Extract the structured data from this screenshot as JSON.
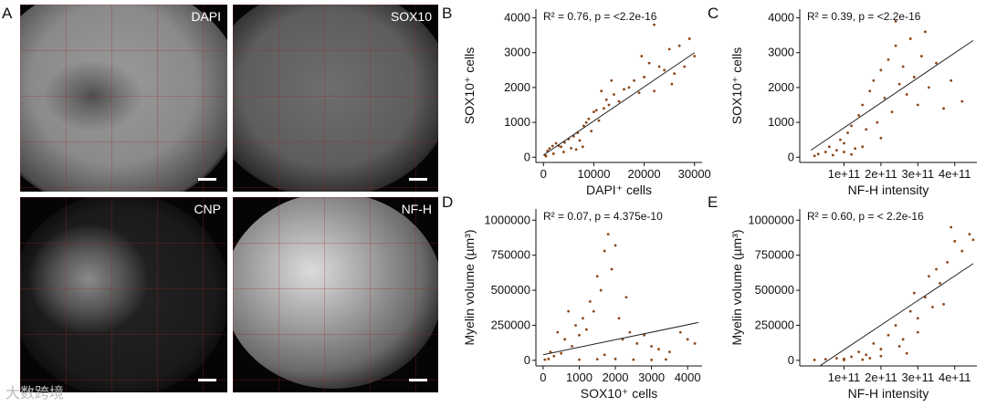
{
  "figure": {
    "panel_letters": [
      "A",
      "B",
      "C",
      "D",
      "E"
    ],
    "micrographs": [
      {
        "label": "DAPI"
      },
      {
        "label": "SOX10"
      },
      {
        "label": "CNP"
      },
      {
        "label": "NF-H"
      }
    ],
    "watermark": "大数跨境"
  },
  "colors": {
    "point": "#8b4513",
    "line": "#222222",
    "axis": "#111111"
  },
  "chart_data": [
    {
      "id": "B",
      "type": "scatter",
      "annotation": "R² = 0.76, p =  <2.2e-16",
      "xlabel": "DAPI⁺ cells",
      "ylabel": "SOX10⁺ cells",
      "xlim": [
        -1500,
        31500
      ],
      "ylim": [
        -150,
        4250
      ],
      "xticks": [
        {
          "v": 0,
          "t": "0"
        },
        {
          "v": 10000,
          "t": "10000"
        },
        {
          "v": 20000,
          "t": "20000"
        },
        {
          "v": 30000,
          "t": "30000"
        }
      ],
      "yticks": [
        {
          "v": 0,
          "t": "0"
        },
        {
          "v": 1000,
          "t": "1000"
        },
        {
          "v": 2000,
          "t": "2000"
        },
        {
          "v": 3000,
          "t": "3000"
        },
        {
          "v": 4000,
          "t": "4000"
        }
      ],
      "fit": [
        [
          0,
          60
        ],
        [
          30000,
          3000
        ]
      ],
      "points": [
        [
          300,
          60
        ],
        [
          800,
          180
        ],
        [
          1200,
          250
        ],
        [
          1800,
          320
        ],
        [
          2500,
          400
        ],
        [
          3000,
          330
        ],
        [
          3500,
          300
        ],
        [
          4200,
          420
        ],
        [
          5000,
          520
        ],
        [
          5500,
          260
        ],
        [
          6000,
          600
        ],
        [
          6800,
          700
        ],
        [
          7200,
          480
        ],
        [
          8000,
          900
        ],
        [
          8500,
          1000
        ],
        [
          9000,
          1100
        ],
        [
          9500,
          750
        ],
        [
          10000,
          1300
        ],
        [
          10500,
          1350
        ],
        [
          11000,
          1050
        ],
        [
          12000,
          1400
        ],
        [
          12500,
          1650
        ],
        [
          13000,
          1500
        ],
        [
          14000,
          1800
        ],
        [
          15000,
          1600
        ],
        [
          16000,
          1950
        ],
        [
          17000,
          2000
        ],
        [
          18000,
          2200
        ],
        [
          19000,
          1850
        ],
        [
          20000,
          2300
        ],
        [
          21000,
          2700
        ],
        [
          22000,
          1900
        ],
        [
          23000,
          2600
        ],
        [
          24000,
          2500
        ],
        [
          25000,
          3100
        ],
        [
          26000,
          2400
        ],
        [
          27000,
          3200
        ],
        [
          28000,
          2600
        ],
        [
          29000,
          3400
        ],
        [
          30000,
          2900
        ],
        [
          22000,
          3800
        ],
        [
          2000,
          100
        ],
        [
          500,
          30
        ],
        [
          4000,
          150
        ],
        [
          6500,
          220
        ],
        [
          7800,
          300
        ],
        [
          11500,
          1900
        ],
        [
          13500,
          2200
        ],
        [
          19500,
          2900
        ],
        [
          25500,
          2100
        ]
      ]
    },
    {
      "id": "C",
      "type": "scatter",
      "annotation": "R² = 0.39, p =  <2.2e-16",
      "xlabel": "NF-H intensity",
      "ylabel": "SOX10⁺ cells",
      "xlim": [
        -20000000000.0,
        460000000000.0
      ],
      "ylim": [
        -150,
        4250
      ],
      "xticks": [
        {
          "v": 100000000000.0,
          "t": "1e+11"
        },
        {
          "v": 200000000000.0,
          "t": "2e+11"
        },
        {
          "v": 300000000000.0,
          "t": "3e+11"
        },
        {
          "v": 400000000000.0,
          "t": "4e+11"
        }
      ],
      "yticks": [
        {
          "v": 0,
          "t": "0"
        },
        {
          "v": 1000,
          "t": "1000"
        },
        {
          "v": 2000,
          "t": "2000"
        },
        {
          "v": 3000,
          "t": "3000"
        },
        {
          "v": 4000,
          "t": "4000"
        }
      ],
      "fit": [
        [
          10000000000.0,
          200
        ],
        [
          450000000000.0,
          3350
        ]
      ],
      "points": [
        [
          20000000000.0,
          40
        ],
        [
          30000000000.0,
          90
        ],
        [
          50000000000.0,
          150
        ],
        [
          60000000000.0,
          300
        ],
        [
          80000000000.0,
          200
        ],
        [
          90000000000.0,
          500
        ],
        [
          100000000000.0,
          400
        ],
        [
          110000000000.0,
          700
        ],
        [
          120000000000.0,
          900
        ],
        [
          130000000000.0,
          250
        ],
        [
          140000000000.0,
          1200
        ],
        [
          150000000000.0,
          1500
        ],
        [
          160000000000.0,
          800
        ],
        [
          170000000000.0,
          1900
        ],
        [
          180000000000.0,
          2200
        ],
        [
          190000000000.0,
          1000
        ],
        [
          200000000000.0,
          2500
        ],
        [
          210000000000.0,
          1700
        ],
        [
          220000000000.0,
          2800
        ],
        [
          230000000000.0,
          1300
        ],
        [
          240000000000.0,
          3200
        ],
        [
          250000000000.0,
          2100
        ],
        [
          260000000000.0,
          2600
        ],
        [
          270000000000.0,
          1800
        ],
        [
          280000000000.0,
          3400
        ],
        [
          290000000000.0,
          2300
        ],
        [
          300000000000.0,
          1500
        ],
        [
          310000000000.0,
          2900
        ],
        [
          330000000000.0,
          2000
        ],
        [
          350000000000.0,
          2700
        ],
        [
          370000000000.0,
          1400
        ],
        [
          390000000000.0,
          2200
        ],
        [
          420000000000.0,
          1600
        ],
        [
          240000000000.0,
          3900
        ],
        [
          100000000000.0,
          150
        ],
        [
          150000000000.0,
          300
        ],
        [
          200000000000.0,
          550
        ],
        [
          70000000000.0,
          60
        ],
        [
          120000000000.0,
          80
        ],
        [
          320000000000.0,
          3600
        ]
      ]
    },
    {
      "id": "D",
      "type": "scatter",
      "annotation": "R² = 0.07, p =  4.375e-10",
      "xlabel": "SOX10⁺ cells",
      "ylabel": "Myelin volume (µm³)",
      "xlim": [
        -200,
        4400
      ],
      "ylim": [
        -40000,
        1080000
      ],
      "xticks": [
        {
          "v": 0,
          "t": "0"
        },
        {
          "v": 1000,
          "t": "1000"
        },
        {
          "v": 2000,
          "t": "2000"
        },
        {
          "v": 3000,
          "t": "3000"
        },
        {
          "v": 4000,
          "t": "4000"
        }
      ],
      "yticks": [
        {
          "v": 0,
          "t": "0"
        },
        {
          "v": 250000,
          "t": "250000"
        },
        {
          "v": 500000,
          "t": "500000"
        },
        {
          "v": 750000,
          "t": "750000"
        },
        {
          "v": 1000000,
          "t": "1000000"
        }
      ],
      "fit": [
        [
          0,
          40000
        ],
        [
          4300,
          270000
        ]
      ],
      "points": [
        [
          50,
          5000
        ],
        [
          150,
          10000
        ],
        [
          300,
          30000
        ],
        [
          500,
          50000
        ],
        [
          600,
          150000
        ],
        [
          800,
          100000
        ],
        [
          900,
          250000
        ],
        [
          1000,
          180000
        ],
        [
          1100,
          300000
        ],
        [
          1200,
          220000
        ],
        [
          1300,
          420000
        ],
        [
          1400,
          350000
        ],
        [
          1500,
          600000
        ],
        [
          1600,
          500000
        ],
        [
          1700,
          780000
        ],
        [
          1800,
          900000
        ],
        [
          1900,
          650000
        ],
        [
          2000,
          820000
        ],
        [
          2100,
          300000
        ],
        [
          2200,
          150000
        ],
        [
          2400,
          200000
        ],
        [
          2600,
          120000
        ],
        [
          2800,
          180000
        ],
        [
          3000,
          100000
        ],
        [
          3200,
          80000
        ],
        [
          3500,
          60000
        ],
        [
          3800,
          200000
        ],
        [
          4000,
          150000
        ],
        [
          4200,
          120000
        ],
        [
          400,
          200000
        ],
        [
          700,
          350000
        ],
        [
          1000,
          5000
        ],
        [
          1500,
          8000
        ],
        [
          2000,
          10000
        ],
        [
          2500,
          5000
        ],
        [
          3000,
          3000
        ],
        [
          3400,
          6000
        ],
        [
          200,
          60000
        ],
        [
          1700,
          40000
        ],
        [
          2300,
          450000
        ]
      ]
    },
    {
      "id": "E",
      "type": "scatter",
      "annotation": "R² = 0.60, p = < 2.2e-16",
      "xlabel": "NF-H intensity",
      "ylabel": "Myelin volume (µm³)",
      "xlim": [
        -20000000000.0,
        460000000000.0
      ],
      "ylim": [
        -40000,
        1080000
      ],
      "xticks": [
        {
          "v": 100000000000.0,
          "t": "1e+11"
        },
        {
          "v": 200000000000.0,
          "t": "2e+11"
        },
        {
          "v": 300000000000.0,
          "t": "3e+11"
        },
        {
          "v": 400000000000.0,
          "t": "4e+11"
        }
      ],
      "yticks": [
        {
          "v": 0,
          "t": "0"
        },
        {
          "v": 250000,
          "t": "250000"
        },
        {
          "v": 500000,
          "t": "500000"
        },
        {
          "v": 750000,
          "t": "750000"
        },
        {
          "v": 1000000,
          "t": "1000000"
        }
      ],
      "fit": [
        [
          0,
          -100000
        ],
        [
          450000000000.0,
          690000
        ]
      ],
      "points": [
        [
          20000000000.0,
          3000
        ],
        [
          50000000000.0,
          8000
        ],
        [
          80000000000.0,
          15000
        ],
        [
          100000000000.0,
          10000
        ],
        [
          120000000000.0,
          25000
        ],
        [
          140000000000.0,
          60000
        ],
        [
          160000000000.0,
          40000
        ],
        [
          180000000000.0,
          120000
        ],
        [
          200000000000.0,
          80000
        ],
        [
          220000000000.0,
          180000
        ],
        [
          240000000000.0,
          250000
        ],
        [
          260000000000.0,
          150000
        ],
        [
          280000000000.0,
          350000
        ],
        [
          300000000000.0,
          300000
        ],
        [
          320000000000.0,
          450000
        ],
        [
          340000000000.0,
          380000
        ],
        [
          360000000000.0,
          550000
        ],
        [
          380000000000.0,
          700000
        ],
        [
          400000000000.0,
          850000
        ],
        [
          420000000000.0,
          780000
        ],
        [
          440000000000.0,
          900000
        ],
        [
          350000000000.0,
          650000
        ],
        [
          300000000000.0,
          200000
        ],
        [
          250000000000.0,
          100000
        ],
        [
          150000000000.0,
          5000
        ],
        [
          100000000000.0,
          2000
        ],
        [
          200000000000.0,
          30000
        ],
        [
          390000000000.0,
          950000
        ],
        [
          450000000000.0,
          860000
        ],
        [
          290000000000.0,
          480000
        ],
        [
          330000000000.0,
          600000
        ],
        [
          170000000000.0,
          15000
        ],
        [
          270000000000.0,
          50000
        ],
        [
          370000000000.0,
          400000
        ]
      ]
    }
  ]
}
